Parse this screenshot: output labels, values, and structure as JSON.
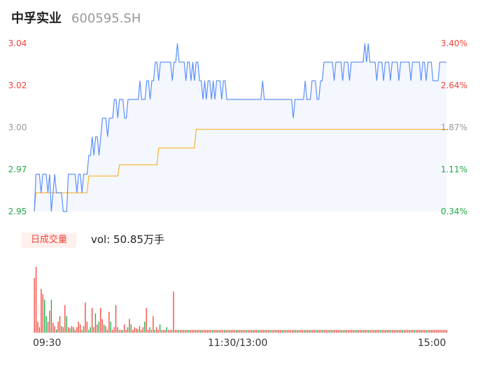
{
  "header": {
    "name": "中孚实业",
    "code": "600595.SH"
  },
  "colors": {
    "price": "#5b8ff9",
    "avg": "#f7b32b",
    "up": "#f04438",
    "down": "#21a84a",
    "flat": "#999999",
    "area": "#f5f7fe"
  },
  "chart_data": [
    {
      "type": "line",
      "title": "",
      "grid": false,
      "y_left": [
        "3.04",
        "3.02",
        "3.00",
        "2.97",
        "2.95"
      ],
      "y_right": [
        "3.40%",
        "2.64%",
        "1.87%",
        "1.11%",
        "0.34%"
      ],
      "ylim": [
        2.95,
        3.04
      ],
      "points_total": 240,
      "series": [
        {
          "role": "price",
          "values": [
            2.95,
            2.97,
            2.97,
            2.97,
            2.96,
            2.97,
            2.97,
            2.97,
            2.96,
            2.97,
            2.95,
            2.96,
            2.97,
            2.96,
            2.96,
            2.96,
            2.96,
            2.95,
            2.95,
            2.95,
            2.97,
            2.97,
            2.97,
            2.97,
            2.97,
            2.96,
            2.97,
            2.97,
            2.96,
            2.97,
            2.97,
            2.97,
            2.98,
            2.98,
            2.99,
            2.98,
            2.99,
            2.99,
            2.98,
            2.99,
            3.0,
            3.0,
            3.0,
            2.99,
            3.0,
            3.0,
            3.0,
            3.01,
            3.01,
            3.0,
            3.01,
            3.01,
            3.01,
            3.0,
            3.0,
            3.01,
            3.01,
            3.01,
            3.01,
            3.01,
            3.01,
            3.01,
            3.02,
            3.01,
            3.01,
            3.01,
            3.02,
            3.02,
            3.01,
            3.02,
            3.02,
            3.03,
            3.03,
            3.02,
            3.03,
            3.03,
            3.03,
            3.03,
            3.03,
            3.03,
            3.03,
            3.02,
            3.03,
            3.03,
            3.04,
            3.03,
            3.03,
            3.03,
            3.03,
            3.02,
            3.03,
            3.03,
            3.02,
            3.03,
            3.02,
            3.03,
            3.03,
            3.02,
            3.02,
            3.01,
            3.02,
            3.01,
            3.02,
            3.02,
            3.01,
            3.02,
            3.01,
            3.02,
            3.02,
            3.02,
            3.01,
            3.02,
            3.02,
            3.01,
            3.01,
            3.01,
            3.01,
            3.01,
            3.01,
            3.01,
            3.01,
            3.01,
            3.01,
            3.01,
            3.01,
            3.01,
            3.01,
            3.01,
            3.01,
            3.01,
            3.01,
            3.01,
            3.01,
            3.01,
            3.02,
            3.01,
            3.01,
            3.01,
            3.01,
            3.01,
            3.01,
            3.01,
            3.01,
            3.01,
            3.01,
            3.01,
            3.01,
            3.01,
            3.01,
            3.01,
            3.01,
            3.01,
            3.0,
            3.01,
            3.01,
            3.01,
            3.01,
            3.01,
            3.01,
            3.02,
            3.01,
            3.01,
            3.01,
            3.02,
            3.02,
            3.02,
            3.01,
            3.01,
            3.02,
            3.02,
            3.03,
            3.03,
            3.03,
            3.03,
            3.03,
            3.03,
            3.02,
            3.03,
            3.03,
            3.03,
            3.03,
            3.02,
            3.03,
            3.03,
            3.03,
            3.02,
            3.03,
            3.03,
            3.03,
            3.03,
            3.03,
            3.03,
            3.03,
            3.03,
            3.04,
            3.03,
            3.04,
            3.03,
            3.03,
            3.03,
            3.03,
            3.02,
            3.03,
            3.03,
            3.03,
            3.02,
            3.03,
            3.03,
            3.03,
            3.02,
            3.03,
            3.03,
            3.03,
            3.03,
            3.02,
            3.03,
            3.03,
            3.03,
            3.03,
            3.03,
            3.03,
            3.02,
            3.03,
            3.03,
            3.03,
            3.03,
            3.03,
            3.02,
            3.03,
            3.03,
            3.02,
            3.03,
            3.03,
            3.03,
            3.02,
            3.02,
            3.02,
            3.02,
            3.03,
            3.03,
            3.03,
            3.03,
            3.03
          ]
        },
        {
          "role": "average",
          "values": [
            2.95,
            2.96,
            2.96,
            2.96,
            2.96,
            2.96,
            2.96,
            2.96,
            2.96,
            2.96,
            2.96,
            2.96,
            2.96,
            2.96,
            2.96,
            2.96,
            2.96,
            2.96,
            2.96,
            2.96,
            2.96,
            2.96,
            2.96,
            2.96,
            2.96,
            2.96,
            2.96,
            2.96,
            2.96,
            2.96,
            2.96,
            2.96,
            2.969,
            2.969,
            2.969,
            2.969,
            2.969,
            2.969,
            2.969,
            2.969,
            2.969,
            2.969,
            2.969,
            2.969,
            2.969,
            2.969,
            2.969,
            2.969,
            2.969,
            2.969,
            2.975,
            2.975,
            2.975,
            2.975,
            2.975,
            2.975,
            2.975,
            2.975,
            2.975,
            2.975,
            2.975,
            2.975,
            2.975,
            2.975,
            2.975,
            2.975,
            2.975,
            2.975,
            2.975,
            2.975,
            2.975,
            2.975,
            2.975,
            2.984,
            2.984,
            2.984,
            2.984,
            2.984,
            2.984,
            2.984,
            2.984,
            2.984,
            2.984,
            2.984,
            2.984,
            2.984,
            2.984,
            2.984,
            2.984,
            2.984,
            2.984,
            2.984,
            2.984,
            2.984,
            2.984,
            2.994,
            2.994,
            2.994,
            2.994,
            2.994,
            2.994,
            2.994,
            2.994,
            2.994,
            2.994,
            2.994,
            2.994,
            2.994,
            2.994,
            2.994,
            2.994,
            2.994,
            2.994,
            2.994,
            2.994,
            2.994,
            2.994,
            2.994,
            2.994,
            2.994,
            2.994,
            2.994,
            2.994,
            2.994,
            2.994,
            2.994,
            2.994,
            2.994,
            2.994,
            2.994,
            2.994,
            2.994,
            2.994,
            2.994,
            2.994,
            2.994,
            2.994,
            2.994,
            2.994,
            2.994,
            2.994,
            2.994,
            2.994,
            2.994,
            2.994,
            2.994,
            2.994,
            2.994,
            2.994,
            2.994,
            2.994,
            2.994,
            2.994,
            2.994,
            2.994,
            2.994,
            2.994,
            2.994,
            2.994,
            2.994,
            2.994,
            2.994,
            2.994,
            2.994,
            2.994,
            2.994,
            2.994,
            2.994,
            2.994,
            2.994,
            2.994,
            2.994,
            2.994,
            2.994,
            2.994,
            2.994,
            2.994,
            2.994,
            2.994,
            2.994,
            2.994,
            2.994,
            2.994,
            2.994,
            2.994,
            2.994,
            2.994,
            2.994,
            2.994,
            2.994,
            2.994,
            2.994,
            2.994,
            2.994,
            2.994,
            2.994,
            2.994,
            2.994,
            2.994,
            2.994,
            2.994,
            2.994,
            2.994,
            2.994,
            2.994,
            2.994,
            2.994,
            2.994,
            2.994,
            2.994,
            2.994,
            2.994,
            2.994,
            2.994,
            2.994,
            2.994,
            2.994,
            2.994,
            2.994,
            2.994,
            2.994,
            2.994,
            2.994,
            2.994,
            2.994,
            2.994,
            2.994,
            2.994,
            2.994,
            2.994,
            2.994,
            2.994,
            2.994,
            2.994,
            2.994,
            2.994,
            2.994,
            2.994,
            2.994,
            2.994,
            2.994,
            2.994,
            2.994,
            2.994
          ]
        }
      ]
    },
    {
      "type": "bar",
      "title": "",
      "badge": "日成交量",
      "vol_label": "vol: 50.85万手",
      "x_ticks": [
        "09:30",
        "11:30/13:00",
        "15:00"
      ],
      "bars_total": 240,
      "volume": [
        1.0,
        1.2,
        0.2,
        0.1,
        0.8,
        0.7,
        0.6,
        0.3,
        0.2,
        0.4,
        0.6,
        0.18,
        0.12,
        0.06,
        0.2,
        0.3,
        0.12,
        0.1,
        0.5,
        0.3,
        0.1,
        0.08,
        0.12,
        0.1,
        0.05,
        0.1,
        0.2,
        0.15,
        0.05,
        0.12,
        0.55,
        0.2,
        0.05,
        0.1,
        0.45,
        0.1,
        0.35,
        0.15,
        0.2,
        0.45,
        0.25,
        0.15,
        0.12,
        0.05,
        0.38,
        0.2,
        0.05,
        0.1,
        0.5,
        0.1,
        0.05,
        0.05,
        0.05,
        0.15,
        0.05,
        0.1,
        0.25,
        0.15,
        0.05,
        0.1,
        0.08,
        0.06,
        0.12,
        0.05,
        0.1,
        0.2,
        0.45,
        0.05,
        0.1,
        0.05,
        0.3,
        0.05,
        0.1,
        0.05,
        0.15,
        0.05,
        0.05,
        0.05,
        0.1,
        0.05,
        0.05,
        0.05,
        0.75,
        0.05,
        0.05,
        0.05,
        0.05,
        0.05,
        0.05,
        0.05,
        0.05,
        0.05,
        0.05,
        0.05,
        0.05,
        0.05,
        0.05,
        0.05,
        0.05,
        0.05,
        0.05,
        0.05,
        0.05,
        0.05,
        0.05,
        0.05,
        0.05,
        0.05,
        0.05,
        0.05,
        0.05,
        0.05,
        0.05,
        0.05,
        0.05,
        0.05,
        0.05,
        0.05,
        0.05,
        0.05,
        0.05,
        0.05,
        0.05,
        0.05,
        0.05,
        0.05,
        0.05,
        0.05,
        0.05,
        0.05,
        0.05,
        0.05,
        0.05,
        0.05,
        0.05,
        0.05,
        0.05,
        0.05,
        0.05,
        0.05,
        0.05,
        0.05,
        0.05,
        0.05,
        0.05,
        0.05,
        0.05,
        0.05,
        0.05,
        0.05,
        0.05,
        0.05,
        0.05,
        0.05,
        0.05,
        0.05,
        0.05,
        0.05,
        0.05,
        0.05,
        0.05,
        0.05,
        0.05,
        0.05,
        0.05,
        0.05,
        0.05,
        0.05,
        0.05,
        0.05,
        0.05,
        0.05,
        0.05,
        0.05,
        0.05,
        0.05,
        0.05,
        0.05,
        0.05,
        0.05,
        0.05,
        0.05,
        0.05,
        0.05,
        0.05,
        0.05,
        0.05,
        0.05,
        0.05,
        0.05,
        0.05,
        0.05,
        0.05,
        0.05,
        0.05,
        0.05,
        0.05,
        0.05,
        0.05,
        0.05,
        0.05,
        0.05,
        0.05,
        0.05,
        0.05,
        0.05,
        0.05,
        0.05,
        0.05,
        0.05,
        0.05,
        0.05,
        0.05,
        0.05,
        0.05,
        0.05,
        0.05,
        0.05,
        0.05,
        0.05,
        0.05,
        0.05,
        0.05,
        0.05,
        0.05,
        0.05,
        0.05,
        0.05,
        0.05,
        0.05,
        0.05,
        0.05,
        0.05,
        0.05,
        0.05,
        0.05,
        0.05,
        0.05,
        0.05,
        0.05,
        0.05,
        0.05,
        0.05,
        0.05
      ],
      "direction": [
        "u",
        "u",
        "u",
        "u",
        "u",
        "u",
        "d",
        "d",
        "u",
        "u",
        "d",
        "u",
        "u",
        "d",
        "u",
        "u",
        "d",
        "u",
        "u",
        "d",
        "u",
        "d",
        "u",
        "u",
        "d",
        "u",
        "u",
        "u",
        "d",
        "u",
        "u",
        "u",
        "d",
        "d",
        "u",
        "u",
        "d",
        "u",
        "d",
        "u",
        "u",
        "d",
        "u",
        "u",
        "u",
        "d",
        "u",
        "u",
        "u",
        "d",
        "u",
        "u",
        "d",
        "u",
        "u",
        "d",
        "u",
        "d",
        "u",
        "u",
        "u",
        "d",
        "u",
        "u",
        "u",
        "d",
        "u",
        "u",
        "d",
        "u",
        "u",
        "d",
        "u",
        "u",
        "d",
        "u",
        "u",
        "u",
        "d",
        "u",
        "u",
        "d",
        "u",
        "u",
        "u",
        "d",
        "u",
        "u",
        "d",
        "u",
        "u",
        "d",
        "u",
        "u",
        "u",
        "d",
        "u",
        "u",
        "d",
        "u",
        "u",
        "u",
        "d",
        "u",
        "u",
        "d",
        "u",
        "u",
        "d",
        "u",
        "u",
        "u",
        "d",
        "u",
        "u",
        "d",
        "u",
        "u",
        "u",
        "d",
        "u",
        "u",
        "d",
        "u",
        "u",
        "d",
        "u",
        "u",
        "u",
        "d",
        "u",
        "u",
        "d",
        "u",
        "u",
        "u",
        "d",
        "u",
        "u",
        "d",
        "u",
        "u",
        "d",
        "u",
        "u",
        "u",
        "d",
        "u",
        "u",
        "d",
        "u",
        "u",
        "u",
        "d",
        "u",
        "u",
        "d",
        "u",
        "u",
        "d",
        "u",
        "u",
        "u",
        "d",
        "u",
        "u",
        "d",
        "u",
        "u",
        "u",
        "d",
        "u",
        "u",
        "d",
        "u",
        "u",
        "d",
        "u",
        "u",
        "u",
        "d",
        "u",
        "u",
        "d",
        "u",
        "u",
        "u",
        "d",
        "u",
        "u",
        "d",
        "u",
        "u",
        "d",
        "u",
        "u",
        "u",
        "d",
        "u",
        "u",
        "d",
        "u",
        "u",
        "u",
        "d",
        "u",
        "u",
        "d",
        "u",
        "u",
        "d",
        "u",
        "u",
        "u",
        "d",
        "u",
        "u",
        "d",
        "u",
        "u",
        "u",
        "d",
        "u",
        "u",
        "d",
        "u",
        "u",
        "d",
        "u",
        "u",
        "u",
        "d",
        "u",
        "u",
        "d",
        "u",
        "u",
        "u"
      ]
    }
  ]
}
